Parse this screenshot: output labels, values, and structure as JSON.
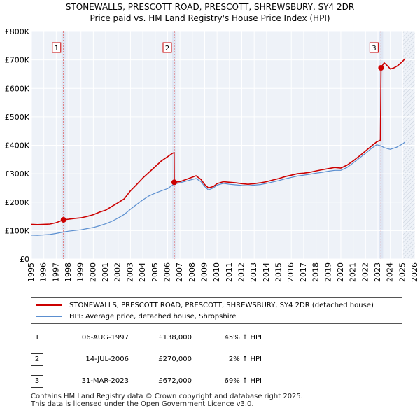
{
  "title_line1": "STONEWALLS, PRESCOTT ROAD, PRESCOTT, SHREWSBURY, SY4 2DR",
  "title_line2": "Price paid vs. HM Land Registry's House Price Index (HPI)",
  "chart_data": {
    "type": "line",
    "xlim": [
      1995,
      2026
    ],
    "ylim": [
      0,
      800000
    ],
    "y_ticks": [
      {
        "value": 0,
        "label": "£0"
      },
      {
        "value": 100000,
        "label": "£100K"
      },
      {
        "value": 200000,
        "label": "£200K"
      },
      {
        "value": 300000,
        "label": "£300K"
      },
      {
        "value": 400000,
        "label": "£400K"
      },
      {
        "value": 500000,
        "label": "£500K"
      },
      {
        "value": 600000,
        "label": "£600K"
      },
      {
        "value": 700000,
        "label": "£700K"
      },
      {
        "value": 800000,
        "label": "£800K"
      }
    ],
    "x_ticks": [
      1995,
      1996,
      1997,
      1998,
      1999,
      2000,
      2001,
      2002,
      2003,
      2004,
      2005,
      2006,
      2007,
      2008,
      2009,
      2010,
      2011,
      2012,
      2013,
      2014,
      2015,
      2016,
      2017,
      2018,
      2019,
      2020,
      2021,
      2022,
      2023,
      2024,
      2025,
      2026
    ],
    "series": [
      {
        "name": "STONEWALLS, PRESCOTT ROAD, PRESCOTT, SHREWSBURY, SY4 2DR (detached house)",
        "color": "#cc0000",
        "points": [
          [
            1995.0,
            122000
          ],
          [
            1995.5,
            121000
          ],
          [
            1996.0,
            122000
          ],
          [
            1996.5,
            123000
          ],
          [
            1997.0,
            128000
          ],
          [
            1997.59,
            138000
          ],
          [
            1998.0,
            140000
          ],
          [
            1998.5,
            143000
          ],
          [
            1999.0,
            145000
          ],
          [
            1999.5,
            150000
          ],
          [
            2000.0,
            156000
          ],
          [
            2000.5,
            165000
          ],
          [
            2001.0,
            172000
          ],
          [
            2001.5,
            185000
          ],
          [
            2002.0,
            198000
          ],
          [
            2002.5,
            212000
          ],
          [
            2003.0,
            240000
          ],
          [
            2003.5,
            262000
          ],
          [
            2004.0,
            285000
          ],
          [
            2004.5,
            305000
          ],
          [
            2005.0,
            325000
          ],
          [
            2005.5,
            345000
          ],
          [
            2006.0,
            360000
          ],
          [
            2006.4,
            372000
          ],
          [
            2006.53,
            374000
          ],
          [
            2006.54,
            270000
          ],
          [
            2007.0,
            272000
          ],
          [
            2007.5,
            280000
          ],
          [
            2008.0,
            288000
          ],
          [
            2008.3,
            293000
          ],
          [
            2008.7,
            280000
          ],
          [
            2009.0,
            262000
          ],
          [
            2009.3,
            250000
          ],
          [
            2009.7,
            255000
          ],
          [
            2010.0,
            265000
          ],
          [
            2010.5,
            272000
          ],
          [
            2011.0,
            270000
          ],
          [
            2011.5,
            268000
          ],
          [
            2012.0,
            265000
          ],
          [
            2012.5,
            263000
          ],
          [
            2013.0,
            265000
          ],
          [
            2013.5,
            268000
          ],
          [
            2014.0,
            272000
          ],
          [
            2014.5,
            278000
          ],
          [
            2015.0,
            283000
          ],
          [
            2015.5,
            290000
          ],
          [
            2016.0,
            295000
          ],
          [
            2016.5,
            300000
          ],
          [
            2017.0,
            302000
          ],
          [
            2017.5,
            305000
          ],
          [
            2018.0,
            310000
          ],
          [
            2018.5,
            314000
          ],
          [
            2019.0,
            318000
          ],
          [
            2019.5,
            322000
          ],
          [
            2020.0,
            320000
          ],
          [
            2020.5,
            330000
          ],
          [
            2021.0,
            345000
          ],
          [
            2021.5,
            362000
          ],
          [
            2022.0,
            380000
          ],
          [
            2022.5,
            398000
          ],
          [
            2022.9,
            412000
          ],
          [
            2023.2,
            418000
          ],
          [
            2023.25,
            672000
          ],
          [
            2023.5,
            690000
          ],
          [
            2023.8,
            678000
          ],
          [
            2024.0,
            668000
          ],
          [
            2024.3,
            672000
          ],
          [
            2024.6,
            680000
          ],
          [
            2025.0,
            695000
          ],
          [
            2025.2,
            705000
          ]
        ]
      },
      {
        "name": "HPI: Average price, detached house, Shropshire",
        "color": "#5b8fd0",
        "points": [
          [
            1995.0,
            84000
          ],
          [
            1995.5,
            83500
          ],
          [
            1996.0,
            85000
          ],
          [
            1996.5,
            86500
          ],
          [
            1997.0,
            90000
          ],
          [
            1997.59,
            95000
          ],
          [
            1998.0,
            98000
          ],
          [
            1998.5,
            100500
          ],
          [
            1999.0,
            103000
          ],
          [
            1999.5,
            107000
          ],
          [
            2000.0,
            111000
          ],
          [
            2000.5,
            117000
          ],
          [
            2001.0,
            124000
          ],
          [
            2001.5,
            133000
          ],
          [
            2002.0,
            144000
          ],
          [
            2002.5,
            157000
          ],
          [
            2003.0,
            175000
          ],
          [
            2003.5,
            192000
          ],
          [
            2004.0,
            208000
          ],
          [
            2004.5,
            222000
          ],
          [
            2005.0,
            232000
          ],
          [
            2005.5,
            240000
          ],
          [
            2006.0,
            248000
          ],
          [
            2006.54,
            264000
          ],
          [
            2007.0,
            268000
          ],
          [
            2007.5,
            274000
          ],
          [
            2008.0,
            280000
          ],
          [
            2008.3,
            283000
          ],
          [
            2008.7,
            272000
          ],
          [
            2009.0,
            255000
          ],
          [
            2009.3,
            243000
          ],
          [
            2009.7,
            250000
          ],
          [
            2010.0,
            260000
          ],
          [
            2010.5,
            266000
          ],
          [
            2011.0,
            263000
          ],
          [
            2011.5,
            261000
          ],
          [
            2012.0,
            259000
          ],
          [
            2012.5,
            258000
          ],
          [
            2013.0,
            260000
          ],
          [
            2013.5,
            262000
          ],
          [
            2014.0,
            266000
          ],
          [
            2014.5,
            271000
          ],
          [
            2015.0,
            276000
          ],
          [
            2015.5,
            282000
          ],
          [
            2016.0,
            287000
          ],
          [
            2016.5,
            292000
          ],
          [
            2017.0,
            295000
          ],
          [
            2017.5,
            298000
          ],
          [
            2018.0,
            302000
          ],
          [
            2018.5,
            305000
          ],
          [
            2019.0,
            309000
          ],
          [
            2019.5,
            312000
          ],
          [
            2020.0,
            312000
          ],
          [
            2020.5,
            322000
          ],
          [
            2021.0,
            338000
          ],
          [
            2021.5,
            355000
          ],
          [
            2022.0,
            372000
          ],
          [
            2022.5,
            390000
          ],
          [
            2022.9,
            402000
          ],
          [
            2023.25,
            398000
          ],
          [
            2023.5,
            392000
          ],
          [
            2023.8,
            388000
          ],
          [
            2024.0,
            386000
          ],
          [
            2024.5,
            393000
          ],
          [
            2025.0,
            405000
          ],
          [
            2025.2,
            412000
          ]
        ]
      }
    ],
    "sales": [
      {
        "label": "1",
        "x": 1997.59,
        "price": 138000
      },
      {
        "label": "2",
        "x": 2006.54,
        "price": 270000
      },
      {
        "label": "3",
        "x": 2023.25,
        "price": 672000
      }
    ],
    "future_from": 2025.0
  },
  "legend": [
    {
      "label": "STONEWALLS, PRESCOTT ROAD, PRESCOTT, SHREWSBURY, SY4 2DR (detached house)",
      "color": "#cc0000"
    },
    {
      "label": "HPI: Average price, detached house, Shropshire",
      "color": "#5b8fd0"
    }
  ],
  "transactions": [
    {
      "num": "1",
      "date": "06-AUG-1997",
      "price": "£138,000",
      "hpi": "45% ↑ HPI"
    },
    {
      "num": "2",
      "date": "14-JUL-2006",
      "price": "£270,000",
      "hpi": "2% ↑ HPI"
    },
    {
      "num": "3",
      "date": "31-MAR-2023",
      "price": "£672,000",
      "hpi": "69% ↑ HPI"
    }
  ],
  "footer_line1": "Contains HM Land Registry data © Crown copyright and database right 2025.",
  "footer_line2": "This data is licensed under the Open Government Licence v3.0."
}
